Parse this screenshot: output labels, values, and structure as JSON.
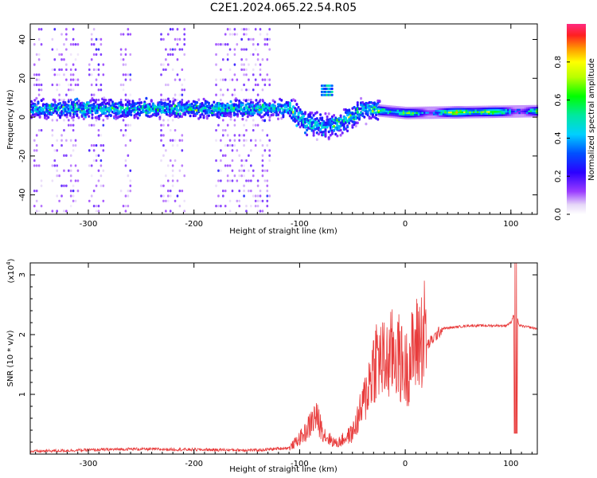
{
  "title": "C2E1.2024.065.22.54.R05",
  "spectrogram": {
    "type": "heatmap",
    "xlabel": "Height of straight line (km)",
    "ylabel": "Frequency (Hz)",
    "xlim": [
      -355,
      125
    ],
    "ylim": [
      -50,
      48
    ],
    "x_ticks": [
      "-300",
      "-200",
      "-100",
      "0",
      "100"
    ],
    "x_tick_values": [
      -300,
      -200,
      -100,
      0,
      100
    ],
    "y_ticks": [
      "-40",
      "-20",
      "0",
      "20",
      "40"
    ],
    "y_tick_values": [
      -40,
      -20,
      0,
      20,
      40
    ],
    "colorbar": {
      "label": "Normalized spectral amplitude",
      "ticks": [
        "0.0",
        "0.2",
        "0.4",
        "0.6",
        "0.8"
      ],
      "tick_values": [
        0.0,
        0.2,
        0.4,
        0.6,
        0.8
      ],
      "range": [
        0,
        1
      ]
    },
    "band_center_hz": [
      {
        "x": -350,
        "f": 4
      },
      {
        "x": -200,
        "f": 4
      },
      {
        "x": -110,
        "f": 4
      },
      {
        "x": -95,
        "f": -3
      },
      {
        "x": -75,
        "f": -5
      },
      {
        "x": -60,
        "f": -3
      },
      {
        "x": -40,
        "f": 4
      },
      {
        "x": 0,
        "f": 2
      },
      {
        "x": 125,
        "f": 3
      }
    ]
  },
  "snr_chart": {
    "type": "line",
    "xlabel": "Height of straight line (km)",
    "ylabel": "SNR (10 * v/v)",
    "scale_label": "(x10",
    "scale_exp": "4",
    "xlim": [
      -355,
      125
    ],
    "ylim": [
      0,
      3.2
    ],
    "x_ticks": [
      "-300",
      "-200",
      "-100",
      "0",
      "100"
    ],
    "x_tick_values": [
      -300,
      -200,
      -100,
      0,
      100
    ],
    "y_ticks": [
      "1",
      "2",
      "3"
    ],
    "y_tick_values": [
      1,
      2,
      3
    ],
    "line_color": "#e83a3a",
    "envelope": [
      {
        "x": -355,
        "y": 0.02
      },
      {
        "x": -260,
        "y": 0.06
      },
      {
        "x": -200,
        "y": 0.05
      },
      {
        "x": -140,
        "y": 0.04
      },
      {
        "x": -110,
        "y": 0.08
      },
      {
        "x": -95,
        "y": 0.3
      },
      {
        "x": -85,
        "y": 0.55
      },
      {
        "x": -75,
        "y": 0.25
      },
      {
        "x": -65,
        "y": 0.15
      },
      {
        "x": -50,
        "y": 0.3
      },
      {
        "x": -40,
        "y": 0.7
      },
      {
        "x": -28,
        "y": 1.4
      },
      {
        "x": -18,
        "y": 1.3
      },
      {
        "x": -10,
        "y": 1.5
      },
      {
        "x": 0,
        "y": 1.2
      },
      {
        "x": 10,
        "y": 1.55
      },
      {
        "x": 20,
        "y": 1.8
      },
      {
        "x": 35,
        "y": 2.1
      },
      {
        "x": 60,
        "y": 2.15
      },
      {
        "x": 95,
        "y": 2.15
      },
      {
        "x": 100,
        "y": 2.2
      },
      {
        "x": 104,
        "y": 2.4
      },
      {
        "x": 108,
        "y": 2.15
      },
      {
        "x": 125,
        "y": 2.1
      }
    ]
  }
}
